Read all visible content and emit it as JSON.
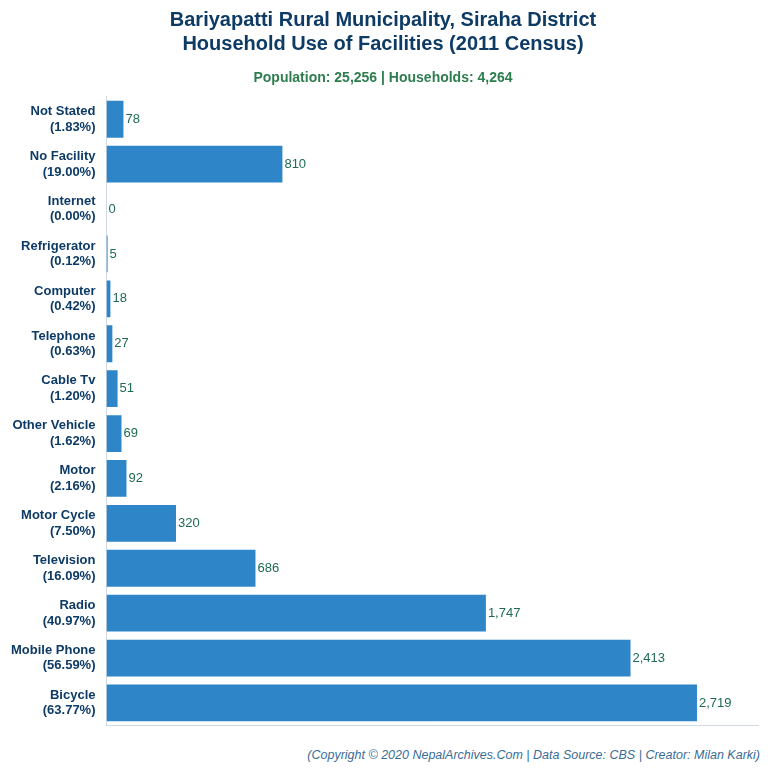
{
  "chart_data": {
    "type": "bar",
    "title": "Bariyapatti Rural Municipality, Siraha District\nHousehold Use of Facilities (2011 Census)",
    "subtitle": "Population: 25,256 | Households: 4,264",
    "footer": "(Copyright © 2020 NepalArchives.Com | Data Source: CBS | Creator: Milan Karki)",
    "categories": [
      "Not Stated\n(1.83%)",
      "No Facility\n(19.00%)",
      "Internet\n(0.00%)",
      "Refrigerator\n(0.12%)",
      "Computer\n(0.42%)",
      "Telephone\n(0.63%)",
      "Cable Tv\n(1.20%)",
      "Other Vehicle\n(1.62%)",
      "Motor\n(2.16%)",
      "Motor Cycle\n(7.50%)",
      "Television\n(16.09%)",
      "Radio\n(40.97%)",
      "Mobile Phone\n(56.59%)",
      "Bicycle\n(63.77%)"
    ],
    "values": [
      78,
      810,
      0,
      5,
      18,
      27,
      51,
      69,
      92,
      320,
      686,
      1747,
      2413,
      2719
    ],
    "value_labels": [
      "78",
      "810",
      "0",
      "5",
      "18",
      "27",
      "51",
      "69",
      "92",
      "320",
      "686",
      "1,747",
      "2,413",
      "2,719"
    ],
    "color": "#2e86c9",
    "orientation": "horizontal",
    "xlim": [
      0,
      3000
    ],
    "grid": false,
    "data_labels": true,
    "tick_labels": "y"
  }
}
